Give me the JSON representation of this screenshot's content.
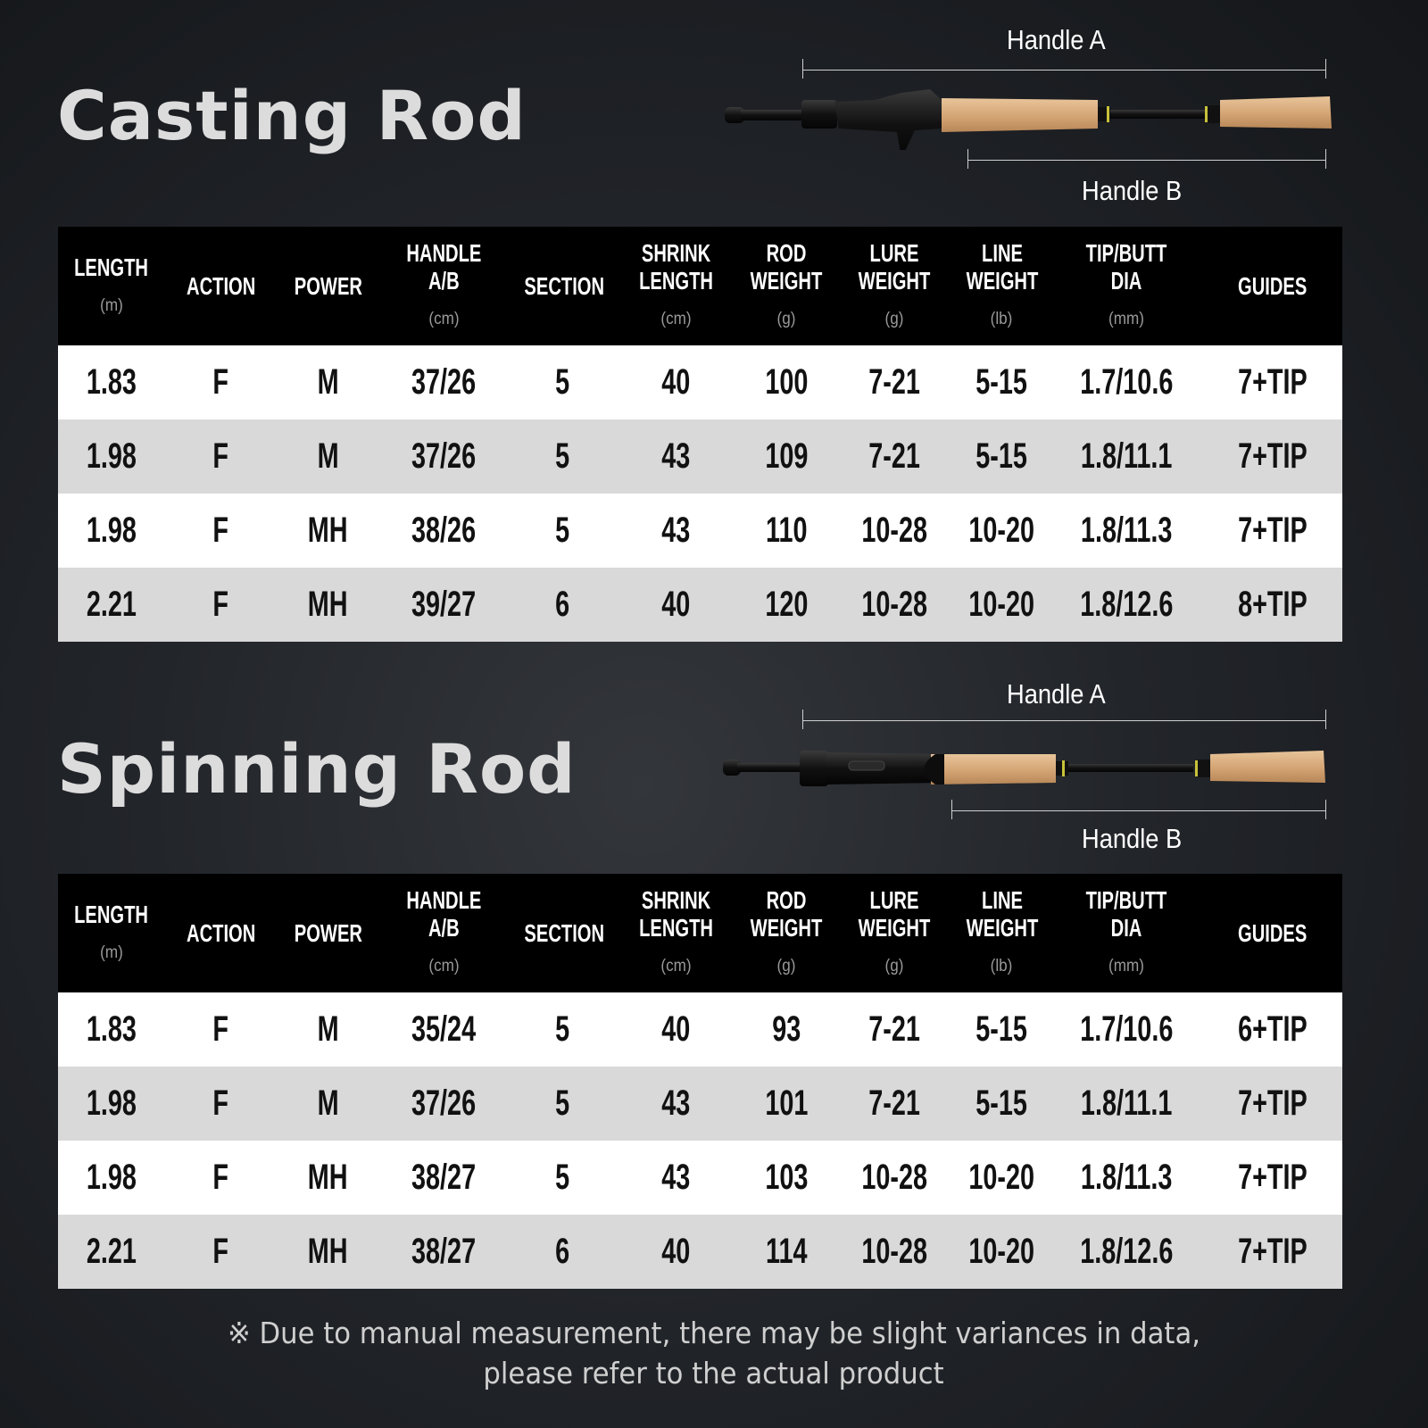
{
  "columns": [
    {
      "label": "LENGTH",
      "unit": "(m)"
    },
    {
      "label": "ACTION",
      "unit": ""
    },
    {
      "label": "POWER",
      "unit": ""
    },
    {
      "label": "HANDLE\nA/B",
      "unit": "(cm)"
    },
    {
      "label": "SECTION",
      "unit": ""
    },
    {
      "label": "SHRINK\nLENGTH",
      "unit": "(cm)"
    },
    {
      "label": "ROD\nWEIGHT",
      "unit": "(g)"
    },
    {
      "label": "LURE\nWEIGHT",
      "unit": "(g)"
    },
    {
      "label": "LINE\nWEIGHT",
      "unit": "(lb)"
    },
    {
      "label": "TIP/BUTT\nDIA",
      "unit": "(mm)"
    },
    {
      "label": "GUIDES",
      "unit": ""
    }
  ],
  "casting": {
    "title": "Casting Rod",
    "handle_a_label": "Handle A",
    "handle_b_label": "Handle B",
    "rows": [
      [
        "1.83",
        "F",
        "M",
        "37/26",
        "5",
        "40",
        "100",
        "7-21",
        "5-15",
        "1.7/10.6",
        "7+TIP"
      ],
      [
        "1.98",
        "F",
        "M",
        "37/26",
        "5",
        "43",
        "109",
        "7-21",
        "5-15",
        "1.8/11.1",
        "7+TIP"
      ],
      [
        "1.98",
        "F",
        "MH",
        "38/26",
        "5",
        "43",
        "110",
        "10-28",
        "10-20",
        "1.8/11.3",
        "7+TIP"
      ],
      [
        "2.21",
        "F",
        "MH",
        "39/27",
        "6",
        "40",
        "120",
        "10-28",
        "10-20",
        "1.8/12.6",
        "8+TIP"
      ]
    ]
  },
  "spinning": {
    "title": "Spinning Rod",
    "handle_a_label": "Handle A",
    "handle_b_label": "Handle B",
    "rows": [
      [
        "1.83",
        "F",
        "M",
        "35/24",
        "5",
        "40",
        "93",
        "7-21",
        "5-15",
        "1.7/10.6",
        "6+TIP"
      ],
      [
        "1.98",
        "F",
        "M",
        "37/26",
        "5",
        "43",
        "101",
        "7-21",
        "5-15",
        "1.8/11.1",
        "7+TIP"
      ],
      [
        "1.98",
        "F",
        "MH",
        "38/27",
        "5",
        "43",
        "103",
        "10-28",
        "10-20",
        "1.8/11.3",
        "7+TIP"
      ],
      [
        "2.21",
        "F",
        "MH",
        "38/27",
        "6",
        "40",
        "114",
        "10-28",
        "10-20",
        "1.8/12.6",
        "7+TIP"
      ]
    ]
  },
  "footnote": {
    "line1": "※ Due to manual measurement, there may be slight variances in data,",
    "line2": "please refer to the actual product"
  },
  "colors": {
    "header_bg": "#000000",
    "row_light": "#ffffff",
    "row_dark": "#d9d9d9",
    "cork": "#d9ab7c"
  }
}
